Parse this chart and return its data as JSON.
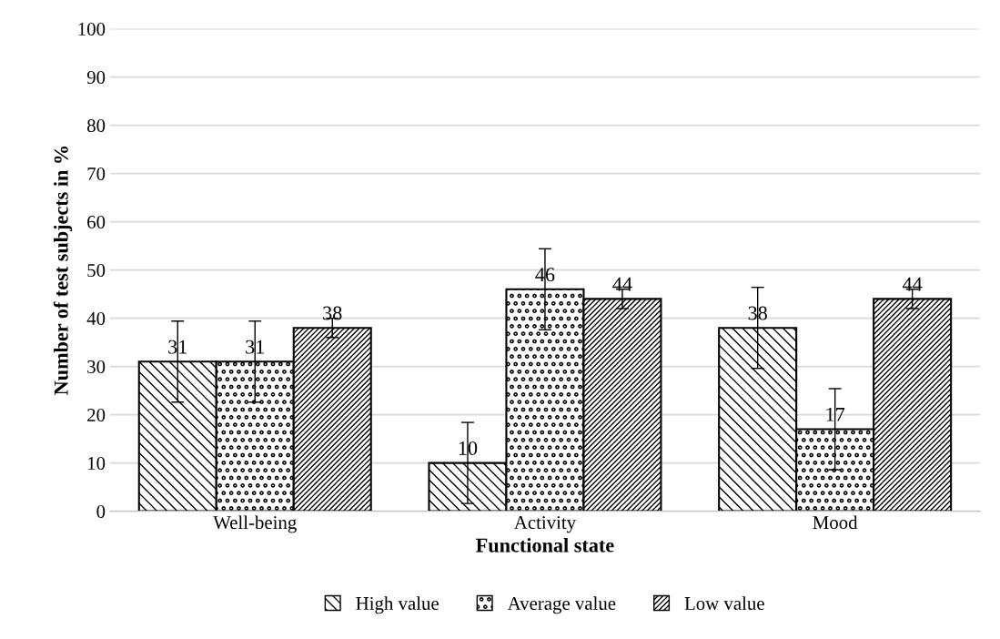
{
  "chart_data": {
    "type": "bar",
    "xlabel": "Functional state",
    "ylabel": "Number of test subjects in %",
    "categories": [
      "Well-being",
      "Activity",
      "Mood"
    ],
    "series": [
      {
        "name": "High value",
        "color": "#000000",
        "values": [
          31,
          10,
          38
        ],
        "errors": [
          8.4,
          8.4,
          8.4
        ]
      },
      {
        "name": "Average value",
        "color": "#000000",
        "values": [
          31,
          46,
          17
        ],
        "errors": [
          8.4,
          8.4,
          8.4
        ]
      },
      {
        "name": "Low value",
        "color": "#000000",
        "values": [
          38,
          44,
          44
        ],
        "errors": [
          2,
          2,
          2
        ]
      }
    ],
    "ylim": [
      0,
      100
    ],
    "yticks": [
      0,
      10,
      20,
      30,
      40,
      50,
      60,
      70,
      80,
      90,
      100
    ],
    "grid": "y",
    "legend": "bottom",
    "data_labels": true
  }
}
